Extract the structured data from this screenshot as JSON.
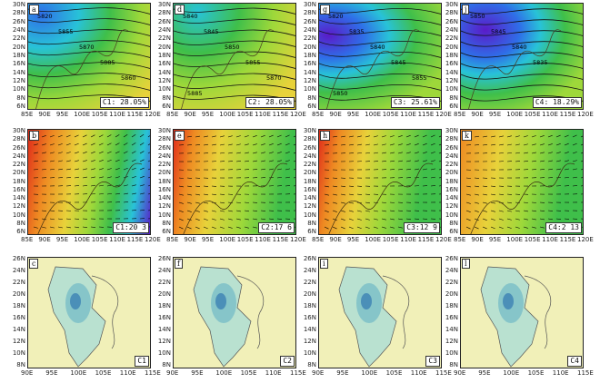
{
  "row1": {
    "panels": [
      {
        "letter": "a",
        "tag": "C1: 28.05%",
        "contours": [
          "5820",
          "5855",
          "5870",
          "5885",
          "5860"
        ]
      },
      {
        "letter": "d",
        "tag": "C2: 28.05%",
        "contours": [
          "5840",
          "5845",
          "5850",
          "5855",
          "5870",
          "5885"
        ]
      },
      {
        "letter": "g",
        "tag": "C3: 25.61%",
        "contours": [
          "5820",
          "5835",
          "5840",
          "5845",
          "5855",
          "5850"
        ]
      },
      {
        "letter": "j",
        "tag": "C4: 18.29%",
        "contours": [
          "5850",
          "5845",
          "5840",
          "5835"
        ]
      }
    ],
    "y_ticks": [
      "30N",
      "28N",
      "26N",
      "24N",
      "22N",
      "20N",
      "18N",
      "16N",
      "14N",
      "12N",
      "10N",
      "8N",
      "6N"
    ],
    "x_ticks": [
      "85E",
      "90E",
      "95E",
      "100E",
      "105E",
      "110E",
      "115E",
      "120E"
    ]
  },
  "row2": {
    "panels": [
      {
        "letter": "b",
        "tag": "C1:20 3"
      },
      {
        "letter": "e",
        "tag": "C2:17 6"
      },
      {
        "letter": "h",
        "tag": "C3:12 9"
      },
      {
        "letter": "k",
        "tag": "C4:2 13"
      }
    ],
    "y_ticks": [
      "30N",
      "28N",
      "26N",
      "24N",
      "22N",
      "20N",
      "18N",
      "16N",
      "14N",
      "12N",
      "10N",
      "8N",
      "6N"
    ],
    "x_ticks": [
      "85E",
      "90E",
      "95E",
      "100E",
      "105E",
      "110E",
      "115E",
      "120E"
    ]
  },
  "row3": {
    "panels": [
      {
        "letter": "c",
        "tag": "C1"
      },
      {
        "letter": "f",
        "tag": "C2"
      },
      {
        "letter": "i",
        "tag": "C3"
      },
      {
        "letter": "l",
        "tag": "C4"
      }
    ],
    "y_ticks": [
      "26N",
      "24N",
      "22N",
      "20N",
      "18N",
      "16N",
      "14N",
      "12N",
      "10N",
      "8N"
    ],
    "x_ticks": [
      "90E",
      "95E",
      "100E",
      "105E",
      "110E",
      "115E"
    ]
  },
  "colors": {
    "purple": "#5a1bc8",
    "blue": "#2f6ee8",
    "cyan": "#28c2d8",
    "green": "#3fbf4a",
    "lime": "#9ed83a",
    "yellow": "#e8d23a",
    "orange": "#ee8a22",
    "red": "#e02a1a",
    "land": "#f1f0b8",
    "rain_low": "#b9e1d0",
    "rain_mid": "#7cc0c8",
    "rain_high": "#4b8fb8"
  }
}
